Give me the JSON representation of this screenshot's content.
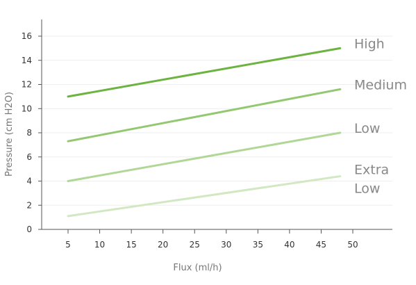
{
  "chart_data": {
    "type": "line",
    "title": "",
    "xlabel": "Flux (ml/h)",
    "ylabel": "Pressure (cm H2O)",
    "xlim": [
      0,
      55
    ],
    "ylim": [
      0,
      17
    ],
    "x_ticks": [
      5,
      10,
      15,
      20,
      25,
      30,
      35,
      40,
      45,
      50
    ],
    "y_ticks": [
      0,
      2,
      4,
      6,
      8,
      10,
      12,
      14,
      16
    ],
    "grid": "horizontal",
    "legend": "right",
    "series": [
      {
        "name": "High",
        "label_lines": [
          "High"
        ],
        "color": "#6cb33f",
        "x": [
          5,
          48
        ],
        "y": [
          11,
          15
        ]
      },
      {
        "name": "Medium",
        "label_lines": [
          "Medium"
        ],
        "color": "#93c870",
        "x": [
          5,
          48
        ],
        "y": [
          7.3,
          11.6
        ]
      },
      {
        "name": "Low",
        "label_lines": [
          "Low"
        ],
        "color": "#b1d797",
        "x": [
          5,
          48
        ],
        "y": [
          4.0,
          8.0
        ]
      },
      {
        "name": "Extra Low",
        "label_lines": [
          "Extra",
          "Low"
        ],
        "color": "#d2e8c2",
        "x": [
          5,
          48
        ],
        "y": [
          1.1,
          4.4
        ]
      }
    ]
  }
}
